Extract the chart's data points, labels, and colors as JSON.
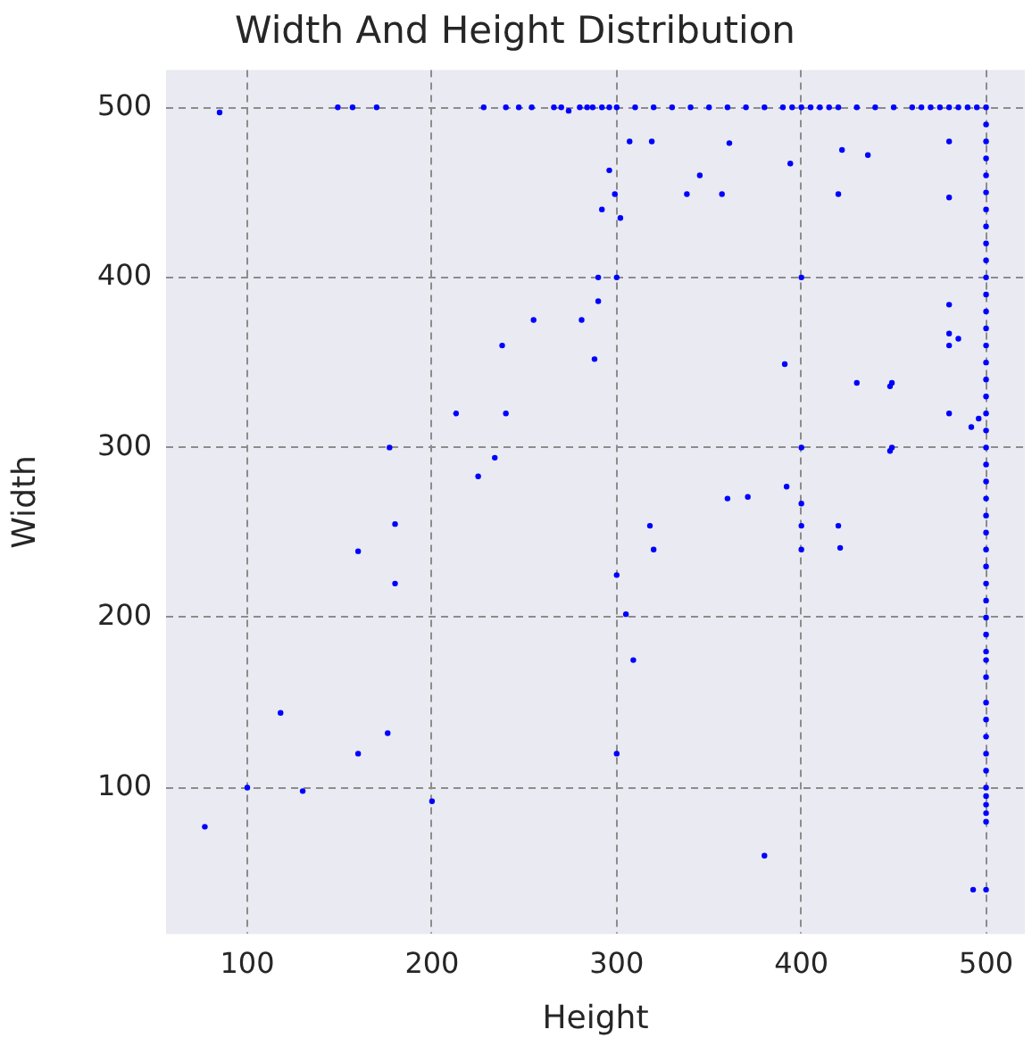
{
  "chart_data": {
    "type": "scatter",
    "title": "Width And Height Distribution",
    "xlabel": "Height",
    "ylabel": "Width",
    "xlim": [
      56,
      521
    ],
    "ylim": [
      14,
      522
    ],
    "xticks": [
      100,
      200,
      300,
      400,
      500
    ],
    "yticks": [
      100,
      200,
      300,
      400,
      500
    ],
    "grid": true,
    "marker": "circle",
    "series": [
      {
        "color": "#0000ff",
        "x": [
          85,
          149,
          157,
          170,
          228,
          240,
          247,
          254,
          266,
          270,
          274,
          280,
          284,
          287,
          292,
          296,
          300,
          310,
          320,
          330,
          340,
          350,
          360,
          370,
          380,
          390,
          395,
          400,
          405,
          410,
          415,
          420,
          430,
          440,
          450,
          460,
          465,
          470,
          475,
          480,
          485,
          490,
          495,
          500,
          500,
          500,
          500,
          500,
          500,
          500,
          500,
          500,
          500,
          500,
          500,
          500,
          500,
          500,
          500,
          500,
          500,
          500,
          500,
          500,
          500,
          500,
          500,
          500,
          500,
          500,
          500,
          500,
          500,
          500,
          500,
          500,
          500,
          500,
          500,
          500,
          500,
          500,
          500,
          500,
          500,
          500,
          500,
          500,
          500
        ],
        "values": [
          497,
          500,
          500,
          500,
          500,
          500,
          500,
          500,
          500,
          500,
          498,
          500,
          500,
          500,
          500,
          500,
          500,
          500,
          500,
          500,
          500,
          500,
          500,
          500,
          500,
          500,
          500,
          500,
          500,
          500,
          500,
          500,
          500,
          500,
          500,
          500,
          500,
          500,
          500,
          500,
          500,
          500,
          500,
          500,
          490,
          480,
          470,
          460,
          450,
          440,
          430,
          420,
          410,
          400,
          390,
          380,
          370,
          360,
          350,
          340,
          330,
          320,
          310,
          300,
          290,
          280,
          270,
          260,
          250,
          240,
          230,
          220,
          210,
          200,
          190,
          180,
          175,
          165,
          150,
          140,
          130,
          120,
          110,
          100,
          95,
          90,
          85,
          80,
          40
        ]
      },
      {
        "color": "#0000ff",
        "x": [
          307,
          319,
          361,
          296,
          394,
          345,
          299,
          338,
          357,
          292,
          302,
          422,
          436,
          420,
          480,
          480,
          290,
          300,
          400,
          290,
          288,
          391,
          430,
          448,
          449,
          480,
          480,
          480,
          485,
          480,
          492,
          496,
          400,
          448,
          449,
          360,
          371,
          392,
          400,
          318,
          320,
          400,
          400,
          420,
          421,
          300,
          305,
          309,
          300,
          380,
          493,
          255,
          281,
          238,
          213,
          240,
          177,
          234,
          225,
          180,
          160,
          180,
          118,
          176,
          160,
          100,
          130,
          200,
          77
        ],
        "values": [
          480,
          480,
          479,
          463,
          467,
          460,
          449,
          449,
          449,
          440,
          435,
          475,
          472,
          449,
          480,
          447,
          400,
          400,
          400,
          386,
          352,
          349,
          338,
          336,
          338,
          384,
          367,
          360,
          364,
          320,
          312,
          317,
          300,
          298,
          300,
          270,
          271,
          277,
          267,
          254,
          240,
          254,
          240,
          254,
          241,
          225,
          202,
          175,
          120,
          60,
          40,
          375,
          375,
          360,
          320,
          320,
          300,
          294,
          283,
          255,
          239,
          220,
          144,
          132,
          120,
          100,
          98,
          92,
          77
        ]
      }
    ]
  }
}
